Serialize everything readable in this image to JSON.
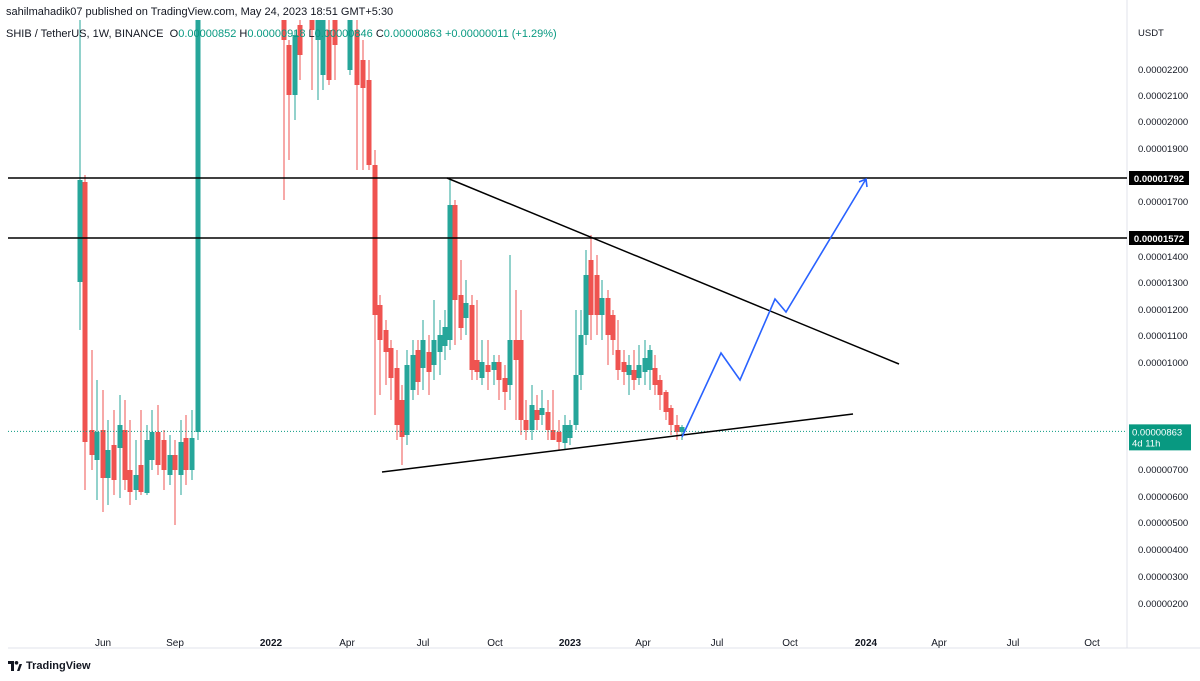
{
  "header": {
    "publish_line": "sahilmahadik07 published on TradingView.com, May 24, 2023 18:51 GMT+5:30",
    "symbol": "SHIB / TetherUS, 1W, BINANCE",
    "open_label": "O",
    "open_value": "0.00000852",
    "high_label": "H",
    "high_value": "0.00000918",
    "low_label": "L",
    "low_value": "0.00000846",
    "close_label": "C",
    "close_value": "0.00000863",
    "change": "+0.00000011 (+1.29%)"
  },
  "footer": {
    "logo_text": "TradingView"
  },
  "chart_data": {
    "type": "candlestick",
    "currency_label": "USDT",
    "y_range": [
      1.5e-06,
      2.3e-06
    ],
    "y_ticks": [
      "0.00002200",
      "0.00002100",
      "0.00002000",
      "0.00001900",
      "0.00001700",
      "0.00001400",
      "0.00001300",
      "0.00001200",
      "0.00001100",
      "0.00001000",
      "0.00000700",
      "0.00000600",
      "0.00000500",
      "0.00000400",
      "0.00000300",
      "0.00000200"
    ],
    "x_ticks": [
      {
        "label": "Jun",
        "bold": false
      },
      {
        "label": "Sep",
        "bold": false
      },
      {
        "label": "2022",
        "bold": true
      },
      {
        "label": "Apr",
        "bold": false
      },
      {
        "label": "Jul",
        "bold": false
      },
      {
        "label": "Oct",
        "bold": false
      },
      {
        "label": "2023",
        "bold": true
      },
      {
        "label": "Apr",
        "bold": false
      },
      {
        "label": "Jul",
        "bold": false
      },
      {
        "label": "Oct",
        "bold": false
      },
      {
        "label": "2024",
        "bold": true
      },
      {
        "label": "Apr",
        "bold": false
      },
      {
        "label": "Jul",
        "bold": false
      },
      {
        "label": "Oct",
        "bold": false
      }
    ],
    "resistance_levels": [
      {
        "label": "0.00001792",
        "value": 1.792e-05
      },
      {
        "label": "0.00001572",
        "value": 1.572e-05
      }
    ],
    "current_price": {
      "label": "0.00000863",
      "countdown": "4d 11h",
      "value": 8.63e-06
    },
    "colors": {
      "up": "#26a69a",
      "down": "#ef5350",
      "projection": "#2962ff",
      "level": "#000000",
      "price_badge": "#089981"
    }
  }
}
